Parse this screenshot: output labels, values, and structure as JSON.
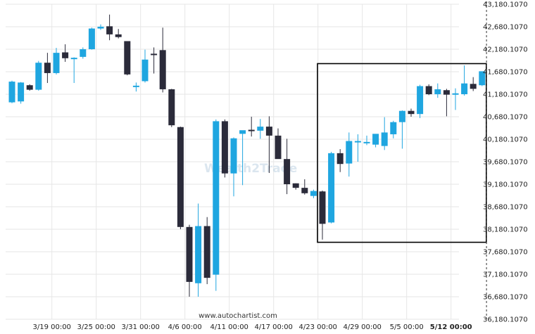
{
  "chart_data": {
    "type": "candlestick",
    "colors": {
      "up": "#1fa6e0",
      "down": "#2b2b3a",
      "box": "#000000",
      "grid": "#e6e6e6",
      "marker": "#333333"
    },
    "y_ticks": [
      "43,180.1070",
      "42,680.1070",
      "42,180.1070",
      "41,680.1070",
      "41,180.1070",
      "40,680.1070",
      "40,180.1070",
      "39,680.1070",
      "39,180.1070",
      "38,680.1070",
      "38,180.1070",
      "37,680.1070",
      "37,180.1070",
      "36,680.1070",
      "36,180.1070"
    ],
    "ylim": [
      36180.107,
      43180.107
    ],
    "x_ticks": [
      {
        "label": "3/19 00:00",
        "index": 4.5
      },
      {
        "label": "3/25 00:00",
        "index": 9.5
      },
      {
        "label": "3/31 00:00",
        "index": 14.5
      },
      {
        "label": "4/6 00:00",
        "index": 19.5
      },
      {
        "label": "4/11 00:00",
        "index": 24.5
      },
      {
        "label": "4/17 00:00",
        "index": 29.5
      },
      {
        "label": "4/23 00:00",
        "index": 34.5
      },
      {
        "label": "4/29 00:00",
        "index": 39.5
      },
      {
        "label": "5/5 00:00",
        "index": 44.5
      },
      {
        "label": "5/12 00:00",
        "index": 49.5,
        "bold": true
      }
    ],
    "candles": [
      {
        "o": 41000,
        "h": 41480,
        "l": 40980,
        "c": 41460
      },
      {
        "o": 41020,
        "h": 41450,
        "l": 40970,
        "c": 41440
      },
      {
        "o": 41380,
        "h": 41400,
        "l": 41260,
        "c": 41280
      },
      {
        "o": 41280,
        "h": 41920,
        "l": 41260,
        "c": 41880
      },
      {
        "o": 41880,
        "h": 42100,
        "l": 41430,
        "c": 41650
      },
      {
        "o": 41650,
        "h": 42210,
        "l": 41620,
        "c": 42100
      },
      {
        "o": 42110,
        "h": 42290,
        "l": 41900,
        "c": 41980
      },
      {
        "o": 41960,
        "h": 42000,
        "l": 41430,
        "c": 41990
      },
      {
        "o": 42010,
        "h": 42220,
        "l": 41970,
        "c": 42180
      },
      {
        "o": 42180,
        "h": 42660,
        "l": 42170,
        "c": 42640
      },
      {
        "o": 42640,
        "h": 42730,
        "l": 42610,
        "c": 42680
      },
      {
        "o": 42690,
        "h": 42950,
        "l": 42380,
        "c": 42510
      },
      {
        "o": 42510,
        "h": 42630,
        "l": 42420,
        "c": 42450
      },
      {
        "o": 42360,
        "h": 42360,
        "l": 41600,
        "c": 41620
      },
      {
        "o": 41360,
        "h": 41440,
        "l": 41240,
        "c": 41370
      },
      {
        "o": 41470,
        "h": 42170,
        "l": 41440,
        "c": 41950
      },
      {
        "o": 42080,
        "h": 42220,
        "l": 41640,
        "c": 42050
      },
      {
        "o": 42160,
        "h": 42660,
        "l": 41220,
        "c": 41290
      },
      {
        "o": 41290,
        "h": 41300,
        "l": 40450,
        "c": 40490
      },
      {
        "o": 40450,
        "h": 40460,
        "l": 38180,
        "c": 38230
      },
      {
        "o": 38230,
        "h": 38280,
        "l": 36680,
        "c": 37010
      },
      {
        "o": 36980,
        "h": 38750,
        "l": 36680,
        "c": 38250
      },
      {
        "o": 38250,
        "h": 38450,
        "l": 36960,
        "c": 37100
      },
      {
        "o": 37170,
        "h": 40620,
        "l": 36810,
        "c": 40580
      },
      {
        "o": 40580,
        "h": 40620,
        "l": 39330,
        "c": 39420
      },
      {
        "o": 39420,
        "h": 40220,
        "l": 38910,
        "c": 40200
      },
      {
        "o": 40300,
        "h": 40340,
        "l": 39160,
        "c": 40380
      },
      {
        "o": 40390,
        "h": 40680,
        "l": 40240,
        "c": 40360
      },
      {
        "o": 40370,
        "h": 40630,
        "l": 40190,
        "c": 40460
      },
      {
        "o": 40460,
        "h": 40690,
        "l": 39430,
        "c": 40260
      },
      {
        "o": 40260,
        "h": 40420,
        "l": 39750,
        "c": 39740
      },
      {
        "o": 39740,
        "h": 40190,
        "l": 38960,
        "c": 39180
      },
      {
        "o": 39200,
        "h": 39200,
        "l": 39060,
        "c": 39100
      },
      {
        "o": 39100,
        "h": 39290,
        "l": 38950,
        "c": 38980
      },
      {
        "o": 38920,
        "h": 39060,
        "l": 38870,
        "c": 39030
      },
      {
        "o": 39020,
        "h": 39040,
        "l": 37950,
        "c": 38300
      },
      {
        "o": 38330,
        "h": 39900,
        "l": 38310,
        "c": 39870
      },
      {
        "o": 39870,
        "h": 39960,
        "l": 39450,
        "c": 39630
      },
      {
        "o": 39640,
        "h": 40330,
        "l": 39350,
        "c": 40140
      },
      {
        "o": 40140,
        "h": 40290,
        "l": 39680,
        "c": 40140
      },
      {
        "o": 40090,
        "h": 40260,
        "l": 40050,
        "c": 40120
      },
      {
        "o": 40060,
        "h": 40240,
        "l": 40000,
        "c": 40300
      },
      {
        "o": 40030,
        "h": 40670,
        "l": 39940,
        "c": 40330
      },
      {
        "o": 40290,
        "h": 40590,
        "l": 40200,
        "c": 40560
      },
      {
        "o": 40560,
        "h": 40820,
        "l": 39970,
        "c": 40810
      },
      {
        "o": 40810,
        "h": 40860,
        "l": 40680,
        "c": 40740
      },
      {
        "o": 40740,
        "h": 41390,
        "l": 40650,
        "c": 41360
      },
      {
        "o": 41360,
        "h": 41400,
        "l": 41160,
        "c": 41180
      },
      {
        "o": 41180,
        "h": 41420,
        "l": 41100,
        "c": 41290
      },
      {
        "o": 41270,
        "h": 41300,
        "l": 40690,
        "c": 41170
      },
      {
        "o": 41190,
        "h": 41310,
        "l": 40830,
        "c": 41200
      },
      {
        "o": 41180,
        "h": 41820,
        "l": 41150,
        "c": 41420
      },
      {
        "o": 41410,
        "h": 41560,
        "l": 41250,
        "c": 41300
      },
      {
        "o": 41380,
        "h": 41660,
        "l": 41360,
        "c": 41690
      }
    ],
    "pattern_box": {
      "from_index": 35,
      "to_index": 53,
      "top": 41860,
      "bottom": 37890
    },
    "grid": true,
    "current_time_marker": {
      "index": 53.5
    }
  },
  "footer": {
    "source": "www.autochartist.com"
  },
  "watermark": {
    "text": "Wealth2Trade"
  }
}
